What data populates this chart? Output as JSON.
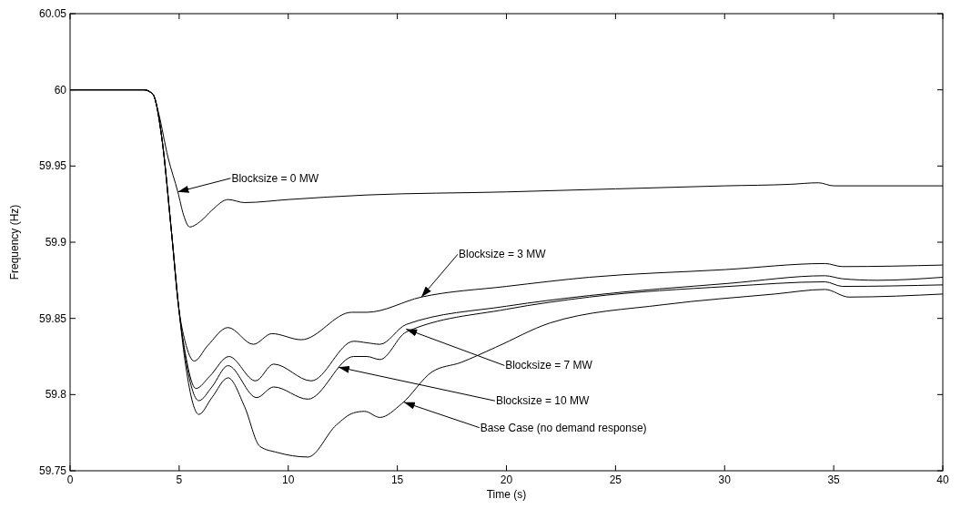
{
  "chart_data": {
    "type": "line",
    "xlabel": "Time (s)",
    "ylabel": "Frequency (Hz)",
    "xlim": [
      0,
      40
    ],
    "xticks": [
      0,
      5,
      10,
      15,
      20,
      25,
      30,
      35,
      40
    ],
    "ylim": [
      59.75,
      60.05
    ],
    "yticks": [
      59.75,
      59.8,
      59.85,
      59.9,
      59.95,
      60,
      60.05
    ],
    "grid": false,
    "marker": "none",
    "line_style": "solid",
    "series": [
      {
        "color": "#000000",
        "x": [
          0,
          3.4,
          3.8,
          4.0,
          4.5,
          4.94,
          5.2,
          5.48,
          6.0,
          6.5,
          7.24,
          8.0,
          10,
          13.6,
          20,
          25,
          30,
          33,
          34.3,
          35,
          40
        ],
        "values": [
          60,
          60,
          59.997,
          59.988,
          59.955,
          59.933,
          59.918,
          59.91,
          59.914,
          59.921,
          59.928,
          59.926,
          59.928,
          59.931,
          59.933,
          59.935,
          59.937,
          59.938,
          59.939,
          59.937,
          59.937
        ]
      },
      {
        "color": "#000000",
        "x": [
          0,
          3.4,
          3.8,
          4.2,
          4.64,
          4.98,
          5.27,
          5.69,
          6.3,
          7.24,
          8.4,
          9.25,
          10.6,
          12.9,
          13.6,
          16.1,
          20,
          23.8,
          30,
          34.6,
          35.4,
          40
        ],
        "values": [
          60,
          60,
          59.997,
          59.969,
          59.908,
          59.857,
          59.835,
          59.822,
          59.832,
          59.844,
          59.833,
          59.84,
          59.836,
          59.854,
          59.854,
          59.864,
          59.871,
          59.877,
          59.882,
          59.886,
          59.884,
          59.885
        ]
      },
      {
        "color": "#000000",
        "x": [
          0,
          3.4,
          3.8,
          4.2,
          4.64,
          4.98,
          5.27,
          5.77,
          6.4,
          7.28,
          8.5,
          9.33,
          11.05,
          13.0,
          13.6,
          14.2,
          15.4,
          20,
          23.8,
          30.2,
          34.6,
          35.4,
          37,
          40
        ],
        "values": [
          60,
          60,
          59.997,
          59.969,
          59.908,
          59.857,
          59.828,
          59.804,
          59.812,
          59.825,
          59.809,
          59.82,
          59.809,
          59.835,
          59.834,
          59.833,
          59.846,
          59.858,
          59.865,
          59.873,
          59.878,
          59.876,
          59.875,
          59.877
        ]
      },
      {
        "color": "#000000",
        "x": [
          0,
          3.4,
          3.8,
          4.2,
          4.64,
          4.98,
          5.27,
          5.9,
          6.5,
          7.24,
          8.55,
          9.33,
          10.9,
          13.0,
          13.6,
          14.2,
          15.4,
          20,
          23.8,
          30.2,
          34.6,
          35.4,
          40
        ],
        "values": [
          60,
          60,
          59.997,
          59.969,
          59.908,
          59.857,
          59.826,
          59.796,
          59.805,
          59.819,
          59.798,
          59.805,
          59.797,
          59.825,
          59.825,
          59.823,
          59.841,
          59.856,
          59.864,
          59.871,
          59.874,
          59.871,
          59.872
        ]
      },
      {
        "color": "#000000",
        "x": [
          0,
          3.4,
          3.8,
          4.2,
          4.64,
          4.98,
          5.27,
          5.9,
          6.5,
          7.24,
          8.0,
          8.7,
          9.5,
          10.9,
          12.2,
          13.0,
          13.5,
          14.2,
          15.2,
          16.6,
          17.9,
          19.5,
          22.0,
          27.2,
          32.3,
          34.6,
          35.7,
          40
        ],
        "values": [
          60,
          60,
          59.997,
          59.969,
          59.908,
          59.857,
          59.822,
          59.787,
          59.798,
          59.811,
          59.792,
          59.766,
          59.762,
          59.759,
          59.78,
          59.788,
          59.789,
          59.785,
          59.794,
          59.815,
          59.821,
          59.831,
          59.847,
          59.859,
          59.866,
          59.869,
          59.864,
          59.866
        ]
      }
    ],
    "annotations": [
      {
        "text": "Blocksize = 0 MW",
        "x": 4.94,
        "y": 59.933
      },
      {
        "text": "Blocksize = 3 MW",
        "x": 16.1,
        "y": 59.864
      },
      {
        "text": "Blocksize = 7 MW",
        "x": 15.4,
        "y": 59.843
      },
      {
        "text": "Blocksize = 10 MW",
        "x": 12.3,
        "y": 59.818
      },
      {
        "text": "Base Case (no demand response)",
        "x": 15.3,
        "y": 59.795
      }
    ]
  }
}
